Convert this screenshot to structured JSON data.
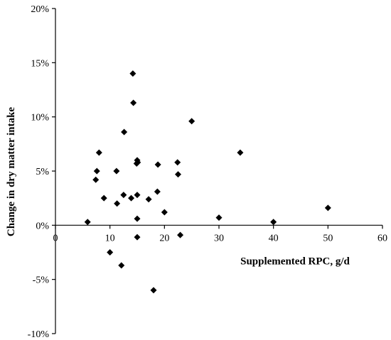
{
  "chart_data": {
    "type": "scatter",
    "title": "",
    "xlabel": "Supplemented RPC, g/d",
    "ylabel": "Change in dry matter intake",
    "xlim": [
      0,
      60
    ],
    "ylim": [
      -10,
      20
    ],
    "x_ticks": [
      "0",
      "10",
      "20",
      "30",
      "40",
      "50",
      "60"
    ],
    "y_ticks": [
      "20%",
      "15%",
      "10%",
      "5%",
      "0%",
      "-5%",
      "-10%"
    ],
    "grid": false,
    "legend": "none",
    "marker": "diamond",
    "marker_color": "#000000",
    "series": [
      {
        "x": [
          5.9,
          7.6,
          7.4,
          8.0,
          8.9,
          10.0,
          11.2,
          11.3,
          12.1,
          12.5,
          12.6,
          13.9,
          14.2,
          14.3,
          14.9,
          15.0,
          15.0,
          15.0,
          15.0,
          15.1,
          17.1,
          18.0,
          18.7,
          18.8,
          20.0,
          22.4,
          22.5,
          22.9,
          25.0,
          30.0,
          33.9,
          40.0,
          50.0
        ],
        "y": [
          0.3,
          5.0,
          4.2,
          6.7,
          2.5,
          -2.5,
          5.0,
          2.0,
          -3.7,
          2.8,
          8.6,
          2.5,
          14.0,
          11.3,
          5.7,
          6.0,
          2.8,
          0.6,
          -1.1,
          5.8,
          2.4,
          -6.0,
          3.1,
          5.6,
          1.2,
          5.8,
          4.7,
          -0.9,
          9.6,
          0.7,
          6.7,
          0.3,
          1.6
        ]
      }
    ]
  }
}
